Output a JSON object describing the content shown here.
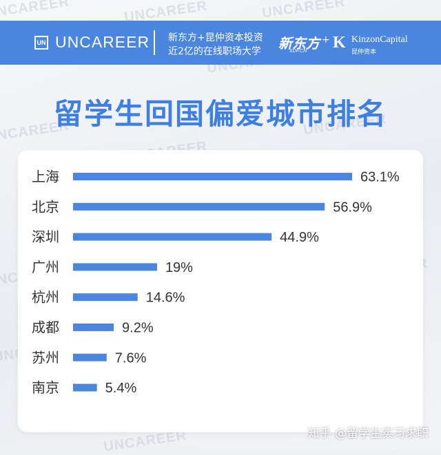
{
  "header": {
    "logo_mark": "UN",
    "brand": "UNCAREER",
    "tagline_line1": "新东方+昆仲资本投资",
    "tagline_line2": "近2亿的在线职场大学",
    "partner1": "新东方",
    "partner1_sub": "XDF.CN",
    "plus": "+",
    "partner2_mark": "K",
    "partner2": "KinzonCapital",
    "partner2_cn": "昆仲资本"
  },
  "watermark": "UNCAREER",
  "credit": "知乎 @留学生实习求职",
  "colors": {
    "bar": "#4a86e0",
    "header": "#4a86e0",
    "title": "#3d7fe2"
  },
  "chart_data": {
    "type": "bar",
    "orientation": "horizontal",
    "title": "留学生回国偏爱城市排名",
    "categories": [
      "上海",
      "北京",
      "深圳",
      "广州",
      "杭州",
      "成都",
      "苏州",
      "南京"
    ],
    "values": [
      63.1,
      56.9,
      44.9,
      19,
      14.6,
      9.2,
      7.6,
      5.4
    ],
    "value_labels": [
      "63.1%",
      "56.9%",
      "44.9%",
      "19%",
      "14.6%",
      "9.2%",
      "7.6%",
      "5.4%"
    ],
    "unit": "%",
    "xlim": [
      0,
      63.1
    ]
  }
}
